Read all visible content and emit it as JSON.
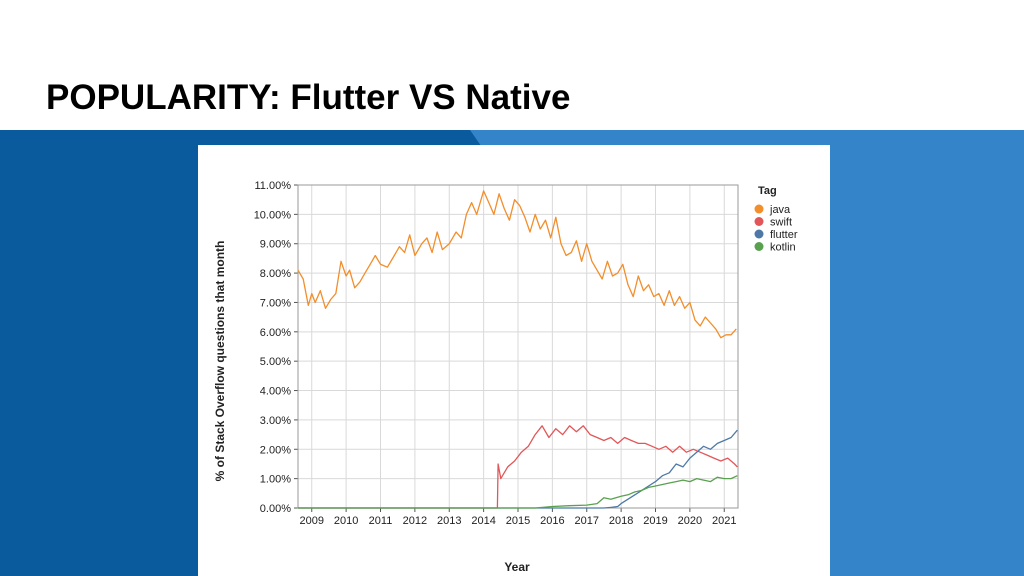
{
  "slide": {
    "title": "POPULARITY: Flutter VS Native"
  },
  "chart_data": {
    "type": "line",
    "title": "",
    "xlabel": "Year",
    "ylabel": "% of Stack Overflow questions that month",
    "xlim": [
      2008.6,
      2021.4
    ],
    "ylim": [
      0,
      11
    ],
    "grid": true,
    "legend": {
      "title": "Tag",
      "position": "right"
    },
    "x_ticks": [
      2009,
      2010,
      2011,
      2012,
      2013,
      2014,
      2015,
      2016,
      2017,
      2018,
      2019,
      2020,
      2021
    ],
    "x_tick_labels": [
      "2009",
      "2010",
      "2011",
      "2012",
      "2013",
      "2014",
      "2015",
      "2016",
      "2017",
      "2018",
      "2019",
      "2020",
      "2021"
    ],
    "y_ticks": [
      0,
      1,
      2,
      3,
      4,
      5,
      6,
      7,
      8,
      9,
      10,
      11
    ],
    "y_tick_labels": [
      "0.00%",
      "1.00%",
      "2.00%",
      "3.00%",
      "4.00%",
      "5.00%",
      "6.00%",
      "7.00%",
      "8.00%",
      "9.00%",
      "10.00%",
      "11.00%"
    ],
    "series": [
      {
        "name": "java",
        "color": "#f28e2b",
        "x": [
          2008.6,
          2008.75,
          2008.9,
          2009.0,
          2009.1,
          2009.25,
          2009.4,
          2009.55,
          2009.7,
          2009.85,
          2010.0,
          2010.1,
          2010.25,
          2010.4,
          2010.55,
          2010.7,
          2010.85,
          2011.0,
          2011.2,
          2011.4,
          2011.55,
          2011.7,
          2011.85,
          2012.0,
          2012.2,
          2012.35,
          2012.5,
          2012.65,
          2012.8,
          2013.0,
          2013.2,
          2013.35,
          2013.5,
          2013.65,
          2013.8,
          2014.0,
          2014.15,
          2014.3,
          2014.45,
          2014.6,
          2014.75,
          2014.9,
          2015.05,
          2015.2,
          2015.35,
          2015.5,
          2015.65,
          2015.8,
          2015.95,
          2016.1,
          2016.25,
          2016.4,
          2016.55,
          2016.7,
          2016.85,
          2017.0,
          2017.15,
          2017.3,
          2017.45,
          2017.6,
          2017.75,
          2017.9,
          2018.05,
          2018.2,
          2018.35,
          2018.5,
          2018.65,
          2018.8,
          2018.95,
          2019.1,
          2019.25,
          2019.4,
          2019.55,
          2019.7,
          2019.85,
          2020.0,
          2020.15,
          2020.3,
          2020.45,
          2020.6,
          2020.75,
          2020.9,
          2021.05,
          2021.2,
          2021.35
        ],
        "values": [
          8.1,
          7.8,
          6.9,
          7.3,
          7.0,
          7.4,
          6.8,
          7.1,
          7.3,
          8.4,
          7.9,
          8.1,
          7.5,
          7.7,
          8.0,
          8.3,
          8.6,
          8.3,
          8.2,
          8.6,
          8.9,
          8.7,
          9.3,
          8.6,
          9.0,
          9.2,
          8.7,
          9.4,
          8.8,
          9.0,
          9.4,
          9.2,
          10.0,
          10.4,
          10.0,
          10.8,
          10.4,
          10.0,
          10.7,
          10.2,
          9.8,
          10.5,
          10.3,
          9.9,
          9.4,
          10.0,
          9.5,
          9.8,
          9.2,
          9.9,
          9.0,
          8.6,
          8.7,
          9.1,
          8.4,
          9.0,
          8.4,
          8.1,
          7.8,
          8.4,
          7.9,
          8.0,
          8.3,
          7.6,
          7.2,
          7.9,
          7.4,
          7.6,
          7.2,
          7.3,
          6.9,
          7.4,
          6.9,
          7.2,
          6.8,
          7.0,
          6.4,
          6.2,
          6.5,
          6.3,
          6.1,
          5.8,
          5.9,
          5.9,
          6.1
        ]
      },
      {
        "name": "swift",
        "color": "#e15759",
        "x": [
          2008.6,
          2014.4,
          2014.42,
          2014.5,
          2014.7,
          2014.9,
          2015.1,
          2015.3,
          2015.5,
          2015.7,
          2015.9,
          2016.1,
          2016.3,
          2016.5,
          2016.7,
          2016.9,
          2017.1,
          2017.3,
          2017.5,
          2017.7,
          2017.9,
          2018.1,
          2018.3,
          2018.5,
          2018.7,
          2018.9,
          2019.1,
          2019.3,
          2019.5,
          2019.7,
          2019.9,
          2020.1,
          2020.3,
          2020.5,
          2020.7,
          2020.9,
          2021.1,
          2021.3,
          2021.38
        ],
        "values": [
          0.0,
          0.0,
          1.5,
          1.0,
          1.4,
          1.6,
          1.9,
          2.1,
          2.5,
          2.8,
          2.4,
          2.7,
          2.5,
          2.8,
          2.6,
          2.8,
          2.5,
          2.4,
          2.3,
          2.4,
          2.2,
          2.4,
          2.3,
          2.2,
          2.2,
          2.1,
          2.0,
          2.1,
          1.9,
          2.1,
          1.9,
          2.0,
          1.9,
          1.8,
          1.7,
          1.6,
          1.7,
          1.5,
          1.4
        ]
      },
      {
        "name": "flutter",
        "color": "#4e79a7",
        "x": [
          2008.6,
          2017.5,
          2017.7,
          2017.9,
          2018.0,
          2018.2,
          2018.4,
          2018.6,
          2018.8,
          2019.0,
          2019.2,
          2019.4,
          2019.6,
          2019.8,
          2020.0,
          2020.2,
          2020.4,
          2020.6,
          2020.8,
          2021.0,
          2021.2,
          2021.38
        ],
        "values": [
          0.0,
          0.0,
          0.02,
          0.05,
          0.15,
          0.3,
          0.45,
          0.6,
          0.75,
          0.9,
          1.1,
          1.2,
          1.5,
          1.4,
          1.7,
          1.9,
          2.1,
          2.0,
          2.2,
          2.3,
          2.4,
          2.65
        ]
      },
      {
        "name": "kotlin",
        "color": "#59a14f",
        "x": [
          2008.6,
          2015.5,
          2016.0,
          2016.5,
          2017.0,
          2017.3,
          2017.5,
          2017.7,
          2018.0,
          2018.2,
          2018.4,
          2018.6,
          2018.8,
          2019.0,
          2019.2,
          2019.4,
          2019.6,
          2019.8,
          2020.0,
          2020.2,
          2020.4,
          2020.6,
          2020.8,
          2021.0,
          2021.2,
          2021.38
        ],
        "values": [
          0.0,
          0.0,
          0.05,
          0.08,
          0.1,
          0.15,
          0.35,
          0.3,
          0.4,
          0.45,
          0.55,
          0.6,
          0.7,
          0.75,
          0.8,
          0.85,
          0.9,
          0.95,
          0.9,
          1.0,
          0.95,
          0.9,
          1.05,
          1.0,
          1.0,
          1.1
        ]
      }
    ]
  }
}
